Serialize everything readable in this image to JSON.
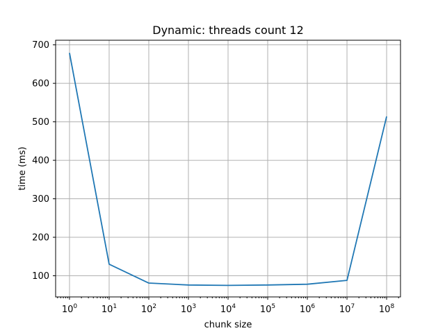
{
  "chart_data": {
    "type": "line",
    "title": "Dynamic: threads count 12",
    "xlabel": "chunk size",
    "ylabel": "time (ms)",
    "xscale": "log",
    "grid": true,
    "x": [
      1,
      10,
      100,
      1000,
      10000,
      100000,
      1000000,
      10000000,
      100000000
    ],
    "x_tick_labels": [
      {
        "base": "10",
        "exp": "0"
      },
      {
        "base": "10",
        "exp": "1"
      },
      {
        "base": "10",
        "exp": "2"
      },
      {
        "base": "10",
        "exp": "3"
      },
      {
        "base": "10",
        "exp": "4"
      },
      {
        "base": "10",
        "exp": "5"
      },
      {
        "base": "10",
        "exp": "6"
      },
      {
        "base": "10",
        "exp": "7"
      },
      {
        "base": "10",
        "exp": "8"
      }
    ],
    "y_ticks": [
      100,
      200,
      300,
      400,
      500,
      600,
      700
    ],
    "series": [
      {
        "color": "#1f77b4",
        "values": [
          679,
          130,
          81,
          76,
          75,
          76,
          78,
          88,
          514
        ]
      }
    ]
  }
}
